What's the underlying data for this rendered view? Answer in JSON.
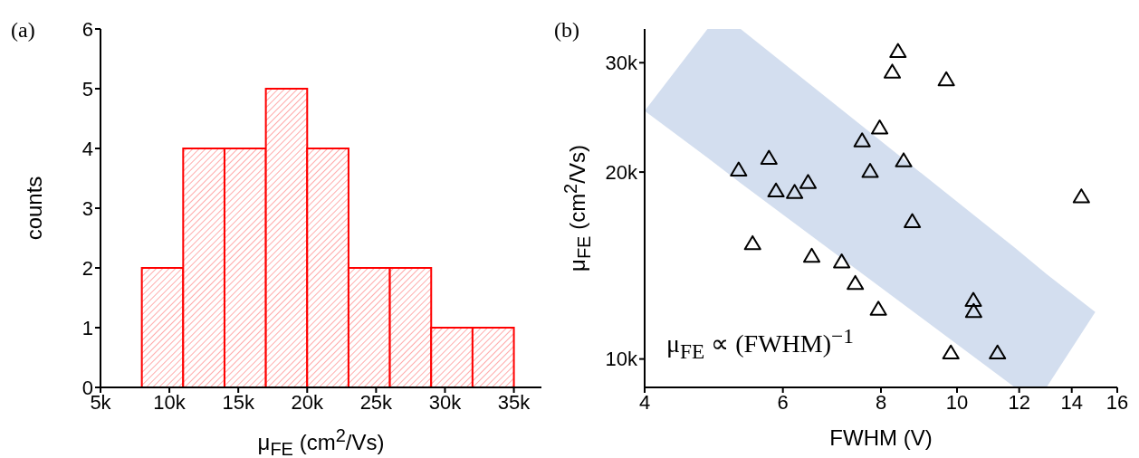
{
  "chart_data": [
    {
      "type": "histogram",
      "title": "(a)",
      "xlabel": "μ$_{FE}$ (cm$^{2}$/Vs)",
      "ylabel": "counts",
      "color": "#ff0000",
      "bins": [
        8000,
        11000,
        14000,
        17000,
        20000,
        23000,
        26000,
        29000,
        32000,
        35000
      ],
      "values": [
        2,
        4,
        4,
        5,
        4,
        2,
        2,
        1,
        1
      ],
      "xlim": [
        5000,
        37000
      ],
      "xticks": [
        {
          "value": 5000,
          "label": "5k"
        },
        {
          "value": 10000,
          "label": "10k"
        },
        {
          "value": 15000,
          "label": "15k"
        },
        {
          "value": 20000,
          "label": "20k"
        },
        {
          "value": 25000,
          "label": "25k"
        },
        {
          "value": 30000,
          "label": "30k"
        },
        {
          "value": 35000,
          "label": "35k"
        }
      ],
      "ylim": [
        0,
        6
      ],
      "yticks": [
        0,
        1,
        2,
        3,
        4,
        5,
        6
      ]
    },
    {
      "type": "scatter",
      "title": "(b)",
      "xlabel": "FWHM (V)",
      "ylabel": "μ$_{FE}$ (cm$^{2}$/Vs)",
      "log": "xy",
      "annotations": [
        "μ$_{FE}$ ∝ (FWHM)$^{−1}$"
      ],
      "series": [
        {
          "color": "#000000",
          "marker": "triangle",
          "x": [
            8.41,
            8.27,
            9.69,
            7.97,
            7.57,
            8.55,
            7.75,
            5.76,
            5.27,
            5.88,
            6.21,
            6.46,
            14.4,
            8.77,
            5.49,
            6.53,
            7.13,
            7.42,
            7.94,
            10.49,
            10.5,
            9.82,
            11.26
          ],
          "values": [
            31200,
            28900,
            28100,
            23500,
            22400,
            20800,
            20000,
            21000,
            20100,
            18600,
            18500,
            19200,
            18200,
            16600,
            15300,
            14600,
            14300,
            13200,
            12000,
            12400,
            11900,
            10200,
            10200
          ]
        },
        {
          "type": "area",
          "color": "#a8bde0",
          "x": [
            4,
            4.81,
            5.3,
            11.85,
            13,
            15
          ],
          "values": [
            null,
            null,
            null,
            null,
            null,
            null
          ],
          "lower": [
            25100,
            21100,
            19200,
            9000,
            9000,
            11900
          ],
          "upper": [
            25100,
            34000,
            34000,
            15100,
            13700,
            11900
          ]
        }
      ],
      "xlim": [
        4,
        16
      ],
      "xticks": [
        4,
        6,
        8,
        10,
        12,
        14,
        16
      ],
      "ylim": [
        9000,
        34000
      ],
      "yticks": [
        {
          "value": 10000,
          "label": "10k"
        },
        {
          "value": 20000,
          "label": "20k"
        },
        {
          "value": 30000,
          "label": "30k"
        }
      ]
    }
  ]
}
